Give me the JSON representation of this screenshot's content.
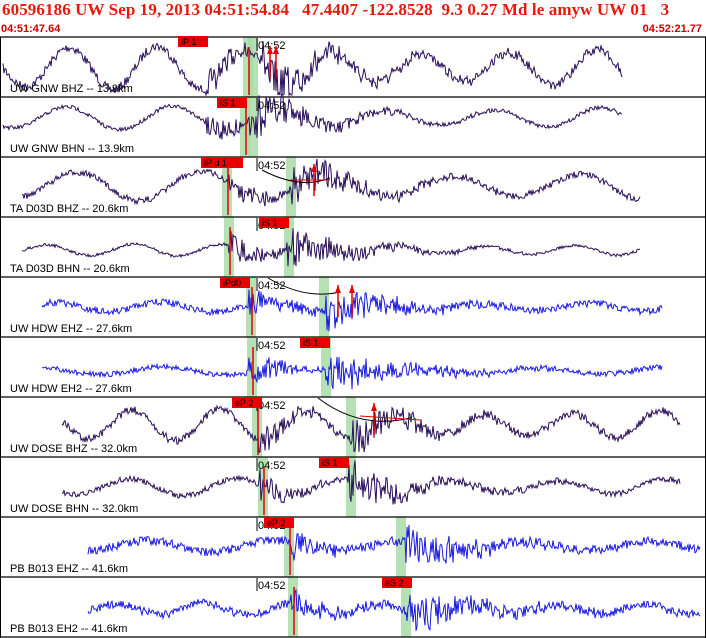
{
  "header": {
    "title": "60596186 UW Sep 19, 2013 04:51:54.84   47.4407 -122.8528  9.3 0.27 Md le amyw UW 01   3",
    "time_start": "04:51:47.64",
    "time_end": "04:52:21.77"
  },
  "colors": {
    "title": "#e8180c",
    "trace_velocity": "#2a0f5a",
    "trace_short_period": "#1a1ae0",
    "pick_box": "#e60000",
    "pick_window": "#a8dca8",
    "separator": "#000000"
  },
  "chart_data": {
    "type": "line",
    "tick_label": "04:52",
    "traces": [
      {
        "label": "UW GNW BHZ -- 13.9km",
        "pick": "iP 1",
        "color": "trace_velocity"
      },
      {
        "label": "UW GNW BHN -- 13.9km",
        "pick": "iS 1",
        "color": "trace_velocity"
      },
      {
        "label": "TA D03D BHZ -- 20.6km",
        "pick": "iP d 1",
        "color": "trace_velocity"
      },
      {
        "label": "TA D03D BHN -- 20.6km",
        "pick": "iS 1",
        "color": "trace_velocity"
      },
      {
        "label": "UW HDW EHZ -- 27.6km",
        "pick": "iPd0",
        "color": "trace_short_period"
      },
      {
        "label": "UW HDW EH2 -- 27.6km",
        "pick": "iS 1",
        "color": "trace_short_period"
      },
      {
        "label": "UW DOSE BHZ -- 32.0km",
        "pick": "eP 2",
        "color": "trace_velocity"
      },
      {
        "label": "UW DOSE BHN -- 32.0km",
        "pick": "iS 1",
        "color": "trace_velocity"
      },
      {
        "label": "PB B013 EHZ -- 41.6km",
        "pick": "eP 2",
        "color": "trace_short_period"
      },
      {
        "label": "PB B013 EH2 -- 41.6km",
        "pick": "eS 2",
        "color": "trace_short_period"
      }
    ]
  }
}
